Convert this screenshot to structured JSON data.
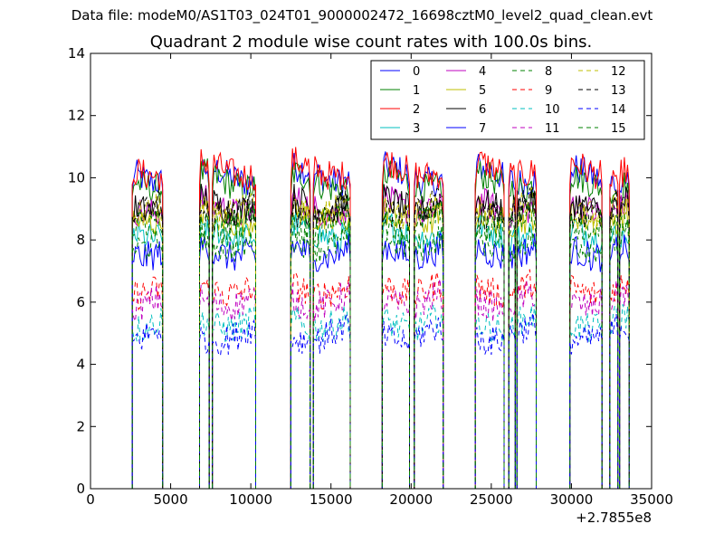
{
  "suptitle": "Data file: modeM0/AS1T03_024T01_9000002472_16698cztM0_level2_quad_clean.evt",
  "chart_data": {
    "type": "line",
    "title": "Quadrant 2 module wise count rates with 100.0s bins.",
    "xlabel": "",
    "ylabel": "",
    "xlim": [
      0,
      35000
    ],
    "ylim": [
      0,
      14
    ],
    "x_offset_label": "+2.7855e8",
    "x_ticks": [
      0,
      5000,
      10000,
      15000,
      20000,
      25000,
      30000,
      35000
    ],
    "x_tick_labels": [
      "0",
      "5000",
      "10000",
      "15000",
      "20000",
      "25000",
      "30000",
      "35000"
    ],
    "y_ticks": [
      0,
      2,
      4,
      6,
      8,
      10,
      12,
      14
    ],
    "y_tick_labels": [
      "0",
      "2",
      "4",
      "6",
      "8",
      "10",
      "12",
      "14"
    ],
    "grid": false,
    "legend_position": "top-right",
    "legend_columns": 4,
    "good_time_segments": [
      [
        2600,
        4500
      ],
      [
        6800,
        7400
      ],
      [
        7600,
        10300
      ],
      [
        12500,
        13700
      ],
      [
        13900,
        16200
      ],
      [
        18200,
        19900
      ],
      [
        20200,
        22000
      ],
      [
        24000,
        25800
      ],
      [
        26100,
        26500
      ],
      [
        26600,
        27800
      ],
      [
        29900,
        31900
      ],
      [
        32400,
        32900
      ],
      [
        33000,
        33600
      ]
    ],
    "series": [
      {
        "name": "0",
        "color": "#0000ff",
        "dash": "solid",
        "level": 10.1
      },
      {
        "name": "1",
        "color": "#008000",
        "dash": "solid",
        "level": 9.9
      },
      {
        "name": "2",
        "color": "#ff0000",
        "dash": "solid",
        "level": 10.3
      },
      {
        "name": "3",
        "color": "#00bfbf",
        "dash": "solid",
        "level": 8.3
      },
      {
        "name": "4",
        "color": "#bf00bf",
        "dash": "solid",
        "level": 9.1
      },
      {
        "name": "5",
        "color": "#bfbf00",
        "dash": "solid",
        "level": 8.8
      },
      {
        "name": "6",
        "color": "#000000",
        "dash": "solid",
        "level": 9.2
      },
      {
        "name": "7",
        "color": "#0000ff",
        "dash": "solid",
        "level": 7.7
      },
      {
        "name": "8",
        "color": "#008000",
        "dash": "dashed",
        "level": 8.0
      },
      {
        "name": "9",
        "color": "#ff0000",
        "dash": "dashed",
        "level": 6.5
      },
      {
        "name": "10",
        "color": "#00bfbf",
        "dash": "dashed",
        "level": 5.4
      },
      {
        "name": "11",
        "color": "#bf00bf",
        "dash": "dashed",
        "level": 6.1
      },
      {
        "name": "12",
        "color": "#bfbf00",
        "dash": "dashed",
        "level": 9.0
      },
      {
        "name": "13",
        "color": "#000000",
        "dash": "dashed",
        "level": 9.0
      },
      {
        "name": "14",
        "color": "#0000ff",
        "dash": "dashed",
        "level": 5.0
      },
      {
        "name": "15",
        "color": "#008000",
        "dash": "dashed",
        "level": 8.6
      }
    ]
  }
}
